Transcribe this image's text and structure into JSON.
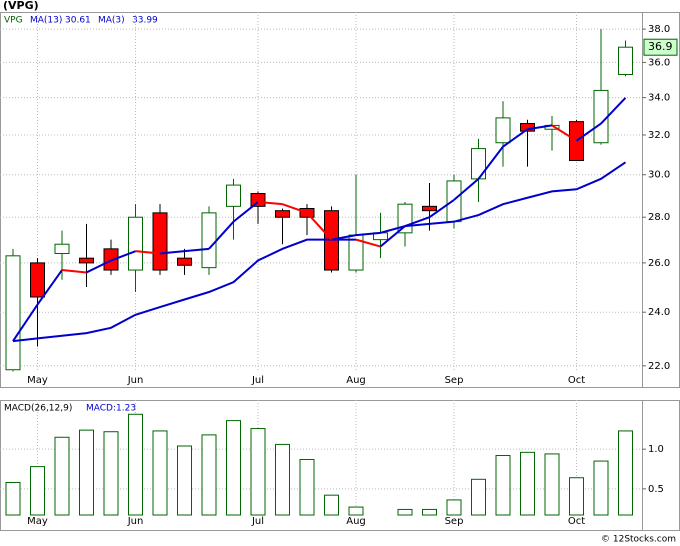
{
  "title": "(VPG)",
  "footer": "© 12Stocks.com",
  "chart_data": [
    {
      "type": "candlestick",
      "symbol": "VPG",
      "categories": [
        null,
        "May",
        null,
        null,
        null,
        "Jun",
        null,
        null,
        null,
        null,
        "Jul",
        null,
        null,
        null,
        "Aug",
        null,
        null,
        null,
        "Sep",
        null,
        null,
        null,
        null,
        "Oct",
        null,
        null
      ],
      "open": [
        21.86,
        26.0,
        26.4,
        26.2,
        26.6,
        25.7,
        28.2,
        26.2,
        25.8,
        28.5,
        29.1,
        28.3,
        28.4,
        28.3,
        25.7,
        27.0,
        27.3,
        28.5,
        27.8,
        29.8,
        31.6,
        32.6,
        32.3,
        32.7,
        31.6,
        35.3
      ],
      "high": [
        26.6,
        26.2,
        27.4,
        27.7,
        27.0,
        28.6,
        28.6,
        26.6,
        28.5,
        29.8,
        29.2,
        28.4,
        28.6,
        28.5,
        30.0,
        28.2,
        28.7,
        29.6,
        30.0,
        31.8,
        33.8,
        32.8,
        33.0,
        32.8,
        38.0,
        37.3
      ],
      "low": [
        21.8,
        22.7,
        25.3,
        25.0,
        25.5,
        24.8,
        25.5,
        25.5,
        25.5,
        27.0,
        27.7,
        26.8,
        27.2,
        25.6,
        25.6,
        26.2,
        26.7,
        27.4,
        27.5,
        28.7,
        30.4,
        30.4,
        31.2,
        30.7,
        31.5,
        35.2
      ],
      "close": [
        26.3,
        24.6,
        26.8,
        26.0,
        25.7,
        28.0,
        25.7,
        25.9,
        28.2,
        29.5,
        28.5,
        28.0,
        28.0,
        25.7,
        27.2,
        27.3,
        28.6,
        28.3,
        29.7,
        31.3,
        32.9,
        32.2,
        32.5,
        30.7,
        34.4,
        36.9
      ],
      "up_color": "#006400",
      "down_color": "#ff0000",
      "series": [
        {
          "name": "MA(13)",
          "color": "#0000cc",
          "last": 30.61,
          "values": [
            22.9,
            23.0,
            23.1,
            23.2,
            23.4,
            23.9,
            24.2,
            24.5,
            24.8,
            25.2,
            26.1,
            26.6,
            27.0,
            27.0,
            27.2,
            27.3,
            27.6,
            27.7,
            27.8,
            28.1,
            28.6,
            28.9,
            29.2,
            29.3,
            29.8,
            30.61
          ]
        },
        {
          "name": "MA(3)",
          "color": "#0000cc",
          "falling_color": "#ff0000",
          "last": 33.99,
          "values": [
            22.9,
            24.3,
            25.7,
            25.6,
            26.1,
            26.5,
            26.4,
            26.5,
            26.6,
            27.8,
            28.7,
            28.6,
            28.2,
            27.0,
            27.0,
            26.7,
            27.6,
            28.0,
            28.8,
            29.8,
            31.4,
            32.3,
            32.5,
            31.7,
            32.6,
            33.99
          ]
        }
      ],
      "last_price": 36.9,
      "log_scale": true,
      "ylim": [
        21.78,
        39.07
      ],
      "yticks": [
        {
          "value": 22,
          "label": "22.0"
        },
        {
          "value": 24,
          "label": "24.0"
        },
        {
          "value": 26,
          "label": "26.0"
        },
        {
          "value": 28,
          "label": "28.0"
        },
        {
          "value": 30,
          "label": "30.0"
        },
        {
          "value": 32,
          "label": "32.0"
        },
        {
          "value": 34,
          "label": "34.0"
        },
        {
          "value": 36,
          "label": "36.0"
        },
        {
          "value": 38,
          "label": "38.0"
        }
      ],
      "grid": true
    },
    {
      "type": "bar",
      "title": "MACD(26,12,9)",
      "value_text": "MACD:1.23",
      "categories": [
        null,
        "May",
        null,
        null,
        null,
        "Jun",
        null,
        null,
        null,
        null,
        "Jul",
        null,
        null,
        null,
        "Aug",
        null,
        null,
        null,
        "Sep",
        null,
        null,
        null,
        null,
        "Oct",
        null,
        null
      ],
      "values": [
        0.58,
        0.78,
        1.15,
        1.24,
        1.22,
        1.44,
        1.23,
        1.04,
        1.18,
        1.36,
        1.26,
        1.06,
        0.87,
        0.42,
        0.27,
        0.15,
        0.24,
        0.24,
        0.36,
        0.62,
        0.92,
        0.96,
        0.94,
        0.64,
        0.85,
        1.23
      ],
      "color": "#006400",
      "ylim": [
        0.17,
        1.62
      ],
      "yticks": [
        {
          "value": 0.5,
          "label": "0.5"
        },
        {
          "value": 1.0,
          "label": "1.0"
        }
      ],
      "grid": true
    }
  ]
}
